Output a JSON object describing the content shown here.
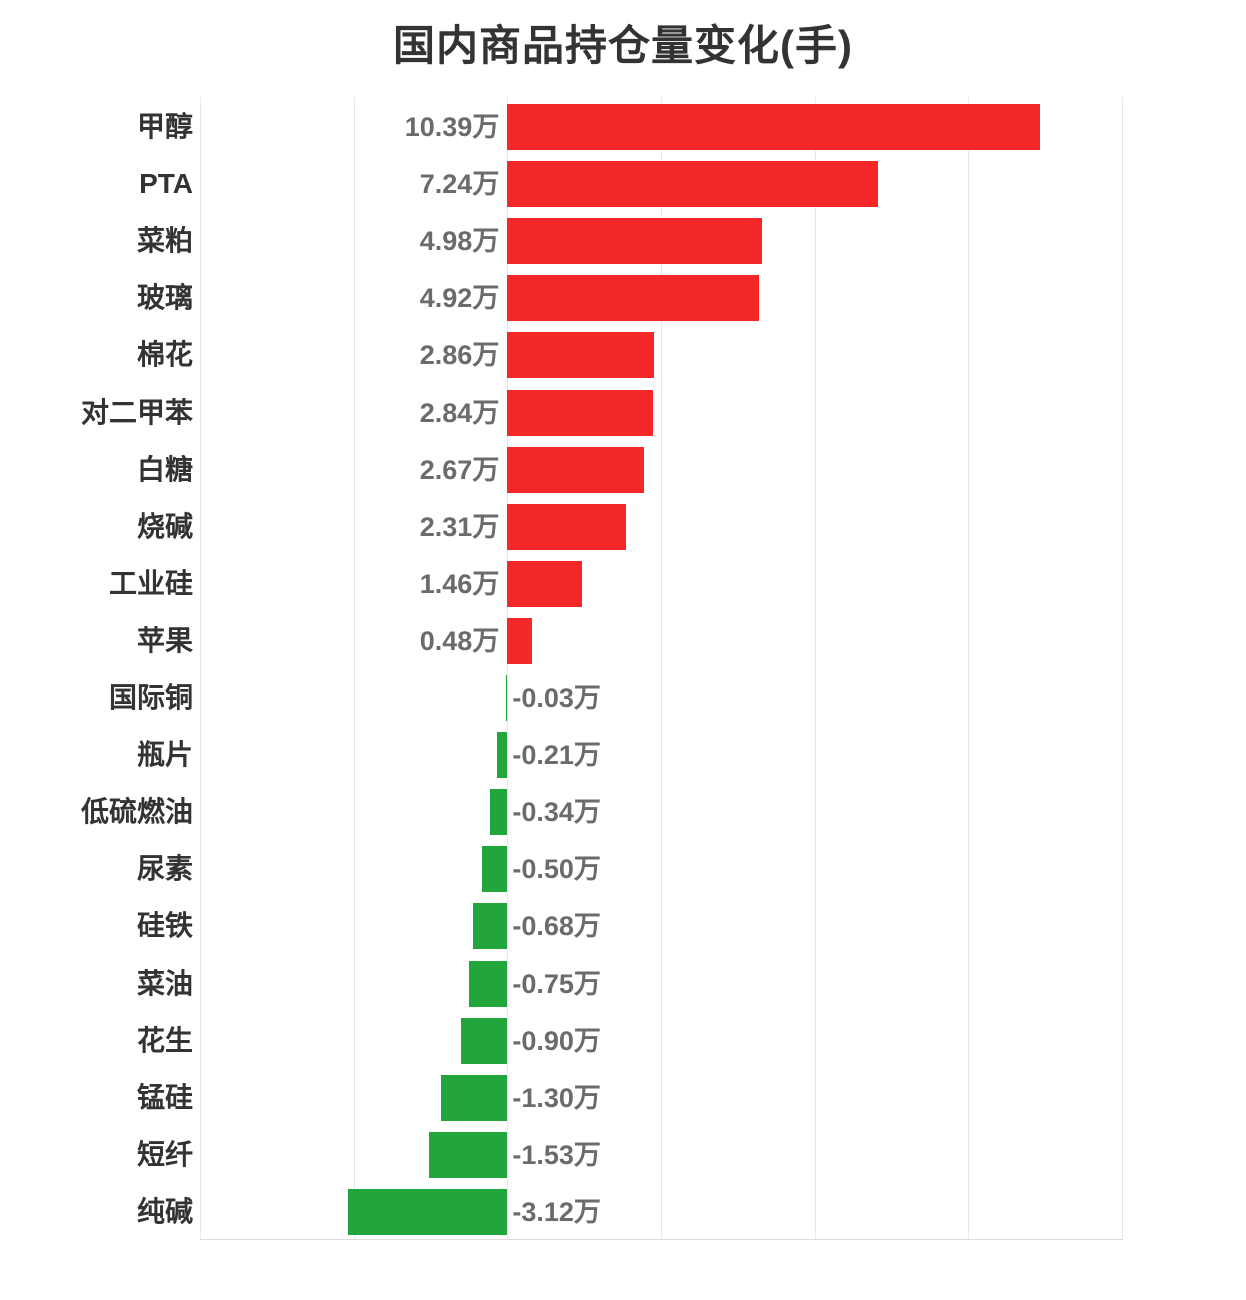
{
  "page": {
    "background_color": "#ffffff"
  },
  "chart_data": {
    "type": "bar",
    "orientation": "horizontal",
    "title": "国内商品持仓量变化(手)",
    "unit": "万",
    "legend": "none",
    "grid": "vertical-gridlines-only",
    "x_axis": {
      "min_wan": -6,
      "max_wan": 12,
      "tick_step_wan": 3,
      "tick_labels_visible": false
    },
    "positive_color": "#f42828",
    "negative_color": "#22a53a",
    "gridline_color": "#e8e8e8",
    "axis_line_color": "#dcdcdc",
    "category_label_color": "#333333",
    "value_label_color": "#6b6b6b",
    "categories": [
      "甲醇",
      "PTA",
      "菜粕",
      "玻璃",
      "棉花",
      "对二甲苯",
      "白糖",
      "烧碱",
      "工业硅",
      "苹果",
      "国际铜",
      "瓶片",
      "低硫燃油",
      "尿素",
      "硅铁",
      "菜油",
      "花生",
      "锰硅",
      "短纤",
      "纯碱"
    ],
    "values": [
      10.39,
      7.24,
      4.98,
      4.92,
      2.86,
      2.84,
      2.67,
      2.31,
      1.46,
      0.48,
      -0.03,
      -0.21,
      -0.34,
      -0.5,
      -0.68,
      -0.75,
      -0.9,
      -1.3,
      -1.53,
      -3.12
    ],
    "value_labels": [
      "10.39万",
      "7.24万",
      "4.98万",
      "4.92万",
      "2.86万",
      "2.84万",
      "2.67万",
      "2.31万",
      "1.46万",
      "0.48万",
      "-0.03万",
      "-0.21万",
      "-0.34万",
      "-0.50万",
      "-0.68万",
      "-0.75万",
      "-0.90万",
      "-1.30万",
      "-1.53万",
      "-3.12万"
    ]
  }
}
